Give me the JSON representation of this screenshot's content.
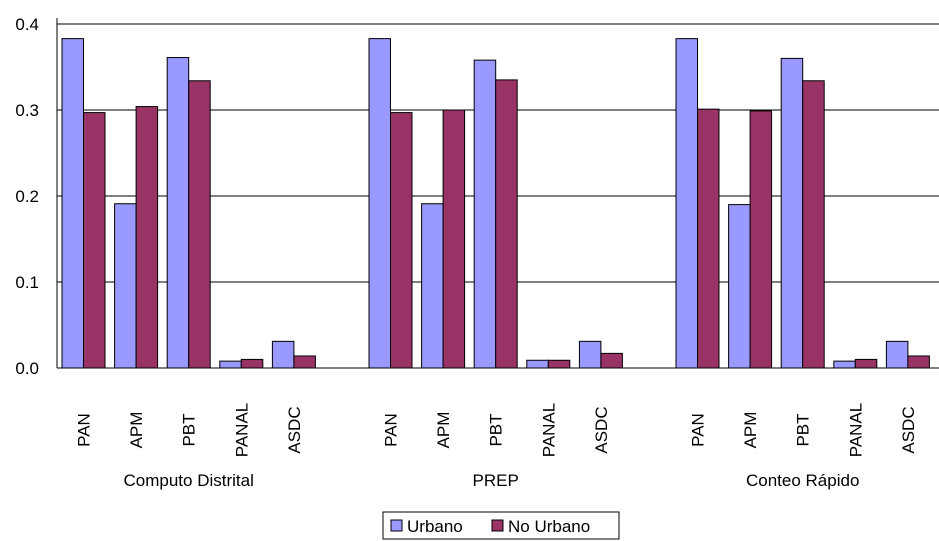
{
  "chart_data": {
    "type": "bar",
    "title": "",
    "xlabel": "",
    "ylabel": "",
    "ylim": [
      0,
      0.4
    ],
    "y_ticks": [
      "0.0",
      "0.1",
      "0.2",
      "0.3",
      "0.4"
    ],
    "grid": true,
    "legend_position": "bottom",
    "groups": [
      "Computo Distrital",
      "PREP",
      "Conteo Rápido"
    ],
    "categories": [
      "PAN",
      "APM",
      "PBT",
      "PANAL",
      "ASDC",
      "PAN",
      "APM",
      "PBT",
      "PANAL",
      "ASDC",
      "PAN",
      "APM",
      "PBT",
      "PANAL",
      "ASDC"
    ],
    "series": [
      {
        "name": "Urbano",
        "color": "#9999ff",
        "values": [
          0.383,
          0.191,
          0.361,
          0.008,
          0.031,
          0.383,
          0.191,
          0.358,
          0.009,
          0.031,
          0.383,
          0.19,
          0.36,
          0.008,
          0.031
        ]
      },
      {
        "name": "No Urbano",
        "color": "#993366",
        "values": [
          0.297,
          0.304,
          0.334,
          0.01,
          0.014,
          0.297,
          0.3,
          0.335,
          0.009,
          0.017,
          0.301,
          0.299,
          0.334,
          0.01,
          0.014
        ]
      }
    ]
  }
}
